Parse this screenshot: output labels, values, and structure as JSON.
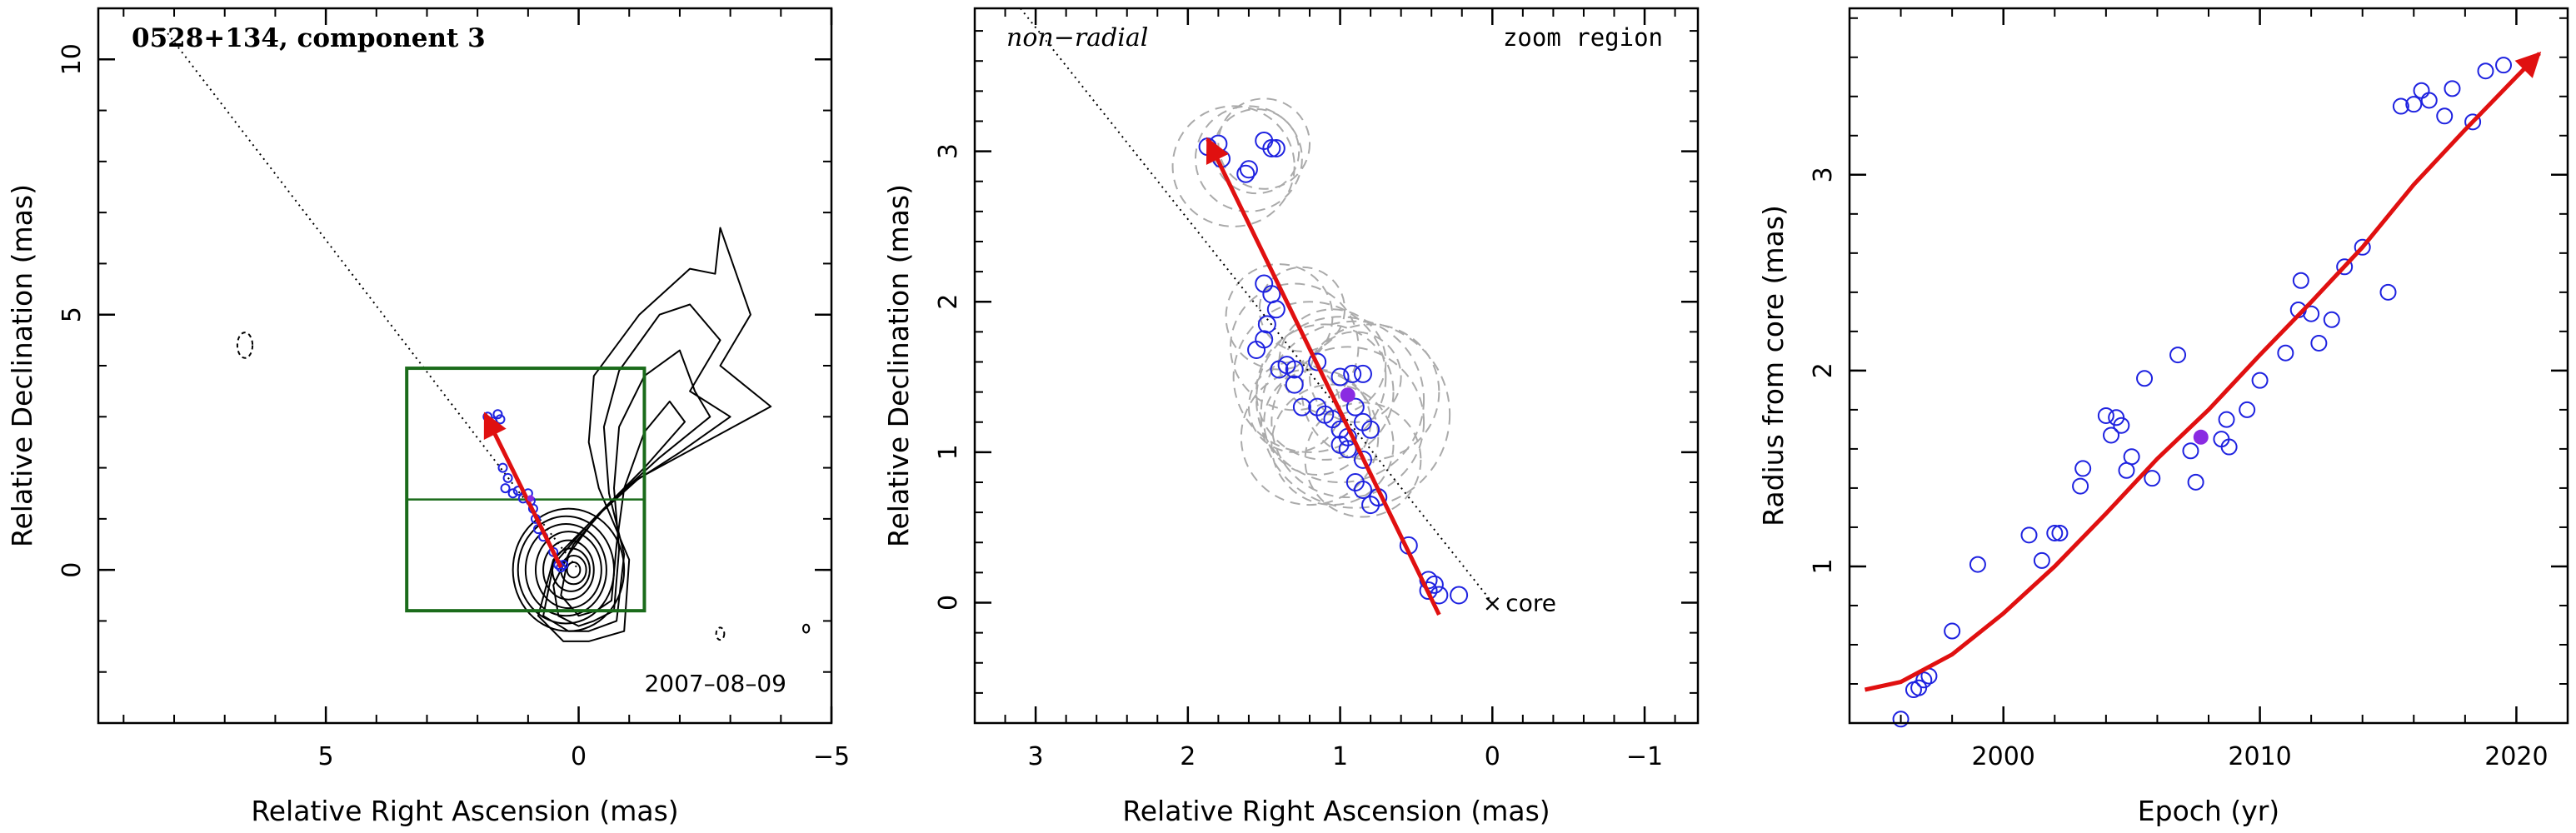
{
  "colors": {
    "contour": "#000000",
    "box": "#1a6b1a",
    "arrow": "#e01010",
    "points": "#1e22e0",
    "filled_point": "#8a2be2",
    "circles": "#aaaaaa"
  },
  "chart_data": [
    {
      "type": "scatter",
      "panel": "left",
      "title": "0528+134, component 3",
      "annotation": "2007–08–09",
      "xlabel": "Relative Right Ascension (mas)",
      "ylabel": "Relative Declination (mas)",
      "xlim": [
        9.5,
        -5
      ],
      "ylim": [
        -3,
        11
      ],
      "xticks": [
        5,
        0,
        -5
      ],
      "yticks": [
        0,
        5,
        10
      ],
      "tick_labels_x": [
        "5",
        "0",
        "−5"
      ],
      "tick_labels_y": [
        "0",
        "5",
        "10"
      ],
      "trajectory_line": {
        "from": [
          8.2,
          10.6
        ],
        "to": [
          0,
          0
        ]
      },
      "zoom_box": {
        "x": [
          3.4,
          -1.3
        ],
        "y": [
          -0.8,
          3.95
        ],
        "mid_y": 1.38
      },
      "arrow": {
        "from": [
          0.35,
          0.05
        ],
        "to": [
          1.85,
          3.05
        ]
      },
      "points": [
        [
          1.8,
          3.0
        ],
        [
          1.7,
          2.9
        ],
        [
          1.55,
          2.95
        ],
        [
          1.6,
          3.05
        ],
        [
          1.5,
          2.0
        ],
        [
          1.4,
          1.8
        ],
        [
          1.45,
          1.6
        ],
        [
          1.3,
          1.5
        ],
        [
          1.2,
          1.55
        ],
        [
          1.1,
          1.4
        ],
        [
          1.0,
          1.5
        ],
        [
          0.95,
          1.35
        ],
        [
          0.9,
          1.2
        ],
        [
          0.85,
          1.0
        ],
        [
          0.8,
          0.8
        ],
        [
          0.7,
          0.65
        ],
        [
          0.5,
          0.35
        ],
        [
          0.4,
          0.1
        ],
        [
          0.35,
          0.05
        ],
        [
          0.3,
          0.1
        ]
      ],
      "filled_point": [
        0.95,
        1.4
      ],
      "contours": [
        {
          "cx": 0.2,
          "cy": 0.0,
          "rx": 1.1,
          "ry": 1.2,
          "rot": 0
        },
        {
          "cx": 0.25,
          "cy": 0.0,
          "rx": 0.95,
          "ry": 1.05,
          "rot": 0
        },
        {
          "cx": 0.25,
          "cy": 0.0,
          "rx": 0.8,
          "ry": 0.9,
          "rot": 0
        },
        {
          "cx": 0.2,
          "cy": 0.0,
          "rx": 0.65,
          "ry": 0.75,
          "rot": 0
        },
        {
          "cx": 0.2,
          "cy": 0.0,
          "rx": 0.5,
          "ry": 0.58,
          "rot": 0
        },
        {
          "cx": 0.15,
          "cy": 0.0,
          "rx": 0.37,
          "ry": 0.42,
          "rot": 0
        },
        {
          "cx": 0.1,
          "cy": 0.0,
          "rx": 0.25,
          "ry": 0.28,
          "rot": 0
        },
        {
          "cx": 0.1,
          "cy": 0.0,
          "rx": 0.13,
          "ry": 0.15,
          "rot": 0
        }
      ],
      "contour_paths": [
        [
          [
            -0.2,
            -1.4
          ],
          [
            -0.9,
            -1.2
          ],
          [
            -1.0,
            0.2
          ],
          [
            -0.4,
            1.6
          ],
          [
            -0.2,
            2.5
          ],
          [
            -0.3,
            3.8
          ],
          [
            -1.2,
            5.0
          ],
          [
            -2.2,
            5.9
          ],
          [
            -2.7,
            5.8
          ],
          [
            -2.8,
            6.7
          ],
          [
            -3.4,
            5.0
          ],
          [
            -2.8,
            4.0
          ],
          [
            -3.8,
            3.2
          ],
          [
            -2.5,
            2.5
          ],
          [
            -1.2,
            1.8
          ],
          [
            -0.3,
            1.0
          ],
          [
            0.5,
            0.2
          ],
          [
            0.8,
            -0.9
          ],
          [
            0.3,
            -1.4
          ]
        ],
        [
          [
            -0.2,
            -1.2
          ],
          [
            -0.75,
            -1.0
          ],
          [
            -0.9,
            0.3
          ],
          [
            -0.6,
            1.5
          ],
          [
            -0.5,
            2.8
          ],
          [
            -0.8,
            3.9
          ],
          [
            -1.6,
            5.0
          ],
          [
            -2.2,
            5.2
          ],
          [
            -2.8,
            4.5
          ],
          [
            -2.2,
            3.5
          ],
          [
            -3.0,
            3.0
          ],
          [
            -2.0,
            2.3
          ],
          [
            -0.9,
            1.6
          ],
          [
            -0.2,
            0.9
          ],
          [
            0.5,
            0.1
          ],
          [
            0.7,
            -0.9
          ],
          [
            0.2,
            -1.2
          ]
        ],
        [
          [
            -0.3,
            -1.0
          ],
          [
            -0.7,
            -0.8
          ],
          [
            -0.8,
            0.4
          ],
          [
            -0.7,
            1.6
          ],
          [
            -0.8,
            2.8
          ],
          [
            -1.3,
            3.8
          ],
          [
            -2.0,
            4.3
          ],
          [
            -2.3,
            3.5
          ],
          [
            -2.6,
            3.0
          ],
          [
            -1.6,
            2.2
          ],
          [
            -0.6,
            1.3
          ],
          [
            0.1,
            0.5
          ],
          [
            0.5,
            -0.3
          ],
          [
            0.4,
            -0.9
          ],
          [
            0.0,
            -1.1
          ]
        ],
        [
          [
            -0.35,
            -0.8
          ],
          [
            -0.65,
            -0.6
          ],
          [
            -0.75,
            0.5
          ],
          [
            -0.9,
            1.6
          ],
          [
            -1.3,
            2.7
          ],
          [
            -1.8,
            3.3
          ],
          [
            -2.1,
            2.9
          ],
          [
            -1.3,
            2.0
          ],
          [
            -0.4,
            1.1
          ],
          [
            0.2,
            0.3
          ],
          [
            0.35,
            -0.5
          ],
          [
            0.0,
            -0.9
          ]
        ]
      ],
      "small_contours": [
        {
          "cx": 6.6,
          "cy": 4.4,
          "rx": 0.15,
          "ry": 0.25,
          "dashed": true
        },
        {
          "cx": -2.8,
          "cy": -1.25,
          "rx": 0.08,
          "ry": 0.12,
          "dashed": true
        },
        {
          "cx": -4.5,
          "cy": -1.15,
          "rx": 0.06,
          "ry": 0.08,
          "dashed": false
        }
      ]
    },
    {
      "type": "scatter",
      "panel": "middle",
      "annotation_left": "non−radial",
      "annotation_right": "zoom region",
      "core_label": "core",
      "core_marker": "×",
      "xlabel": "Relative Right Ascension (mas)",
      "ylabel": "Relative Declination (mas)",
      "xlim": [
        3.4,
        -1.35
      ],
      "ylim": [
        -0.8,
        3.95
      ],
      "xticks": [
        3,
        2,
        1,
        0,
        -1
      ],
      "yticks": [
        0,
        1,
        2,
        3
      ],
      "tick_labels_x": [
        "3",
        "2",
        "1",
        "0",
        "−1"
      ],
      "tick_labels_y": [
        "0",
        "1",
        "2",
        "3"
      ],
      "trajectory_line": {
        "from": [
          3.1,
          3.95
        ],
        "to": [
          0,
          0
        ]
      },
      "arrow": {
        "from": [
          0.35,
          -0.08
        ],
        "to": [
          1.87,
          3.08
        ]
      },
      "points": [
        [
          1.87,
          3.03
        ],
        [
          1.8,
          3.05
        ],
        [
          1.78,
          2.95
        ],
        [
          1.6,
          2.88
        ],
        [
          1.62,
          2.85
        ],
        [
          1.5,
          3.07
        ],
        [
          1.45,
          3.02
        ],
        [
          1.42,
          3.02
        ],
        [
          1.5,
          2.12
        ],
        [
          1.45,
          2.05
        ],
        [
          1.42,
          1.95
        ],
        [
          1.48,
          1.85
        ],
        [
          1.5,
          1.75
        ],
        [
          1.55,
          1.68
        ],
        [
          1.4,
          1.55
        ],
        [
          1.35,
          1.58
        ],
        [
          1.3,
          1.55
        ],
        [
          1.3,
          1.45
        ],
        [
          1.25,
          1.3
        ],
        [
          1.15,
          1.3
        ],
        [
          1.1,
          1.25
        ],
        [
          1.05,
          1.22
        ],
        [
          1.15,
          1.6
        ],
        [
          1.0,
          1.5
        ],
        [
          0.92,
          1.52
        ],
        [
          0.85,
          1.52
        ],
        [
          1.0,
          1.15
        ],
        [
          0.95,
          1.1
        ],
        [
          0.85,
          1.2
        ],
        [
          0.8,
          1.15
        ],
        [
          0.95,
          1.02
        ],
        [
          0.85,
          0.95
        ],
        [
          0.9,
          0.8
        ],
        [
          0.85,
          0.75
        ],
        [
          0.75,
          0.7
        ],
        [
          0.8,
          0.65
        ],
        [
          0.55,
          0.38
        ],
        [
          0.42,
          0.15
        ],
        [
          0.38,
          0.12
        ],
        [
          0.42,
          0.08
        ],
        [
          0.35,
          0.05
        ],
        [
          0.22,
          0.05
        ],
        [
          1.0,
          1.05
        ],
        [
          0.9,
          1.3
        ]
      ],
      "filled_point": [
        0.95,
        1.38
      ],
      "dashed_circles": [
        {
          "cx": 1.6,
          "cy": 2.95,
          "r": 0.35
        },
        {
          "cx": 1.55,
          "cy": 3.0,
          "r": 0.28
        },
        {
          "cx": 1.7,
          "cy": 2.9,
          "r": 0.4
        },
        {
          "cx": 1.5,
          "cy": 3.05,
          "r": 0.3
        },
        {
          "cx": 1.4,
          "cy": 1.9,
          "r": 0.35
        },
        {
          "cx": 1.3,
          "cy": 1.7,
          "r": 0.42
        },
        {
          "cx": 1.2,
          "cy": 1.5,
          "r": 0.5
        },
        {
          "cx": 1.1,
          "cy": 1.4,
          "r": 0.45
        },
        {
          "cx": 1.0,
          "cy": 1.35,
          "r": 0.55
        },
        {
          "cx": 0.95,
          "cy": 1.2,
          "r": 0.5
        },
        {
          "cx": 0.9,
          "cy": 1.25,
          "r": 0.62
        },
        {
          "cx": 1.05,
          "cy": 1.05,
          "r": 0.4
        },
        {
          "cx": 1.15,
          "cy": 1.2,
          "r": 0.35
        },
        {
          "cx": 0.85,
          "cy": 0.95,
          "r": 0.38
        },
        {
          "cx": 0.9,
          "cy": 1.5,
          "r": 0.3
        },
        {
          "cx": 1.3,
          "cy": 1.3,
          "r": 0.3
        },
        {
          "cx": 1.05,
          "cy": 1.6,
          "r": 0.35
        },
        {
          "cx": 0.8,
          "cy": 1.4,
          "r": 0.45
        },
        {
          "cx": 1.2,
          "cy": 1.1,
          "r": 0.45
        },
        {
          "cx": 1.25,
          "cy": 1.95,
          "r": 0.28
        }
      ]
    },
    {
      "type": "scatter",
      "panel": "right",
      "xlabel": "Epoch (yr)",
      "ylabel": "Radius from core (mas)",
      "xlim": [
        1994,
        2022
      ],
      "ylim": [
        0.2,
        3.85
      ],
      "xticks": [
        2000,
        2010,
        2020
      ],
      "yticks": [
        1,
        2,
        3
      ],
      "tick_labels_x": [
        "2000",
        "2010",
        "2020"
      ],
      "tick_labels_y": [
        "1",
        "2",
        "3"
      ],
      "fit_curve": [
        [
          1994.6,
          0.37
        ],
        [
          1996,
          0.41
        ],
        [
          1998,
          0.55
        ],
        [
          2000,
          0.76
        ],
        [
          2002,
          1.0
        ],
        [
          2004,
          1.27
        ],
        [
          2006,
          1.55
        ],
        [
          2008,
          1.8
        ],
        [
          2010,
          2.08
        ],
        [
          2012,
          2.35
        ],
        [
          2014,
          2.63
        ],
        [
          2016,
          2.95
        ],
        [
          2018,
          3.23
        ],
        [
          2020,
          3.5
        ],
        [
          2020.9,
          3.62
        ]
      ],
      "points": [
        [
          1996.0,
          0.22
        ],
        [
          1996.5,
          0.37
        ],
        [
          1996.7,
          0.38
        ],
        [
          1996.9,
          0.42
        ],
        [
          1997.1,
          0.44
        ],
        [
          1998.0,
          0.67
        ],
        [
          1999.0,
          1.01
        ],
        [
          2001.0,
          1.16
        ],
        [
          2001.5,
          1.03
        ],
        [
          2002.0,
          1.17
        ],
        [
          2002.2,
          1.17
        ],
        [
          2003.0,
          1.41
        ],
        [
          2003.1,
          1.5
        ],
        [
          2004.0,
          1.77
        ],
        [
          2004.2,
          1.67
        ],
        [
          2004.4,
          1.76
        ],
        [
          2004.6,
          1.72
        ],
        [
          2004.8,
          1.49
        ],
        [
          2005.0,
          1.56
        ],
        [
          2005.5,
          1.96
        ],
        [
          2005.8,
          1.45
        ],
        [
          2006.8,
          2.08
        ],
        [
          2007.3,
          1.59
        ],
        [
          2007.5,
          1.43
        ],
        [
          2008.5,
          1.65
        ],
        [
          2008.7,
          1.75
        ],
        [
          2008.8,
          1.61
        ],
        [
          2009.5,
          1.8
        ],
        [
          2010.0,
          1.95
        ],
        [
          2011.0,
          2.09
        ],
        [
          2011.5,
          2.31
        ],
        [
          2011.6,
          2.46
        ],
        [
          2012.0,
          2.29
        ],
        [
          2012.3,
          2.14
        ],
        [
          2012.8,
          2.26
        ],
        [
          2013.3,
          2.53
        ],
        [
          2014.0,
          2.63
        ],
        [
          2015.0,
          2.4
        ],
        [
          2015.5,
          3.35
        ],
        [
          2016.0,
          3.36
        ],
        [
          2016.3,
          3.43
        ],
        [
          2016.6,
          3.38
        ],
        [
          2017.2,
          3.3
        ],
        [
          2017.5,
          3.44
        ],
        [
          2018.3,
          3.27
        ],
        [
          2018.8,
          3.53
        ],
        [
          2019.5,
          3.56
        ]
      ],
      "filled_point": [
        2007.7,
        1.66
      ]
    }
  ]
}
